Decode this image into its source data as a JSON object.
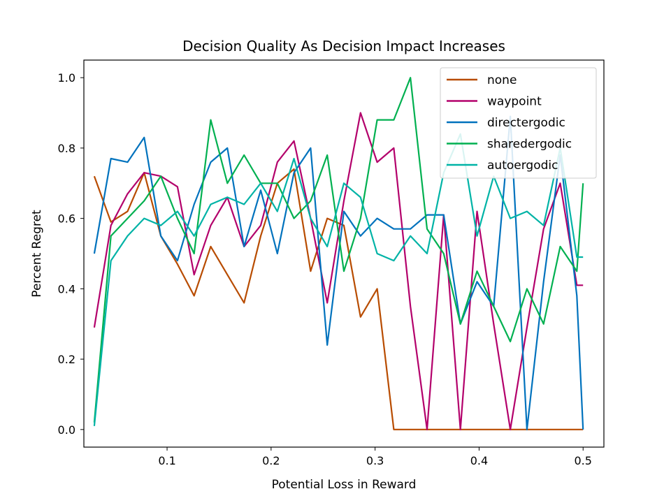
{
  "chart_data": {
    "type": "line",
    "title": "Decision Quality As Decision Impact Increases",
    "xlabel": "Potential Loss in Reward",
    "ylabel": "Percent Regret",
    "xlim": [
      0.02,
      0.52
    ],
    "ylim": [
      -0.05,
      1.05
    ],
    "xticks": [
      0.1,
      0.2,
      0.3,
      0.4,
      0.5
    ],
    "xtick_labels": [
      "0.1",
      "0.2",
      "0.3",
      "0.4",
      "0.5"
    ],
    "yticks": [
      0.0,
      0.2,
      0.4,
      0.6,
      0.8,
      1.0
    ],
    "ytick_labels": [
      "0.0",
      "0.2",
      "0.4",
      "0.6",
      "0.8",
      "1.0"
    ],
    "grid": false,
    "legend_position": "top-right",
    "x": [
      0.03,
      0.046,
      0.062,
      0.078,
      0.094,
      0.11,
      0.126,
      0.142,
      0.158,
      0.174,
      0.19,
      0.206,
      0.222,
      0.238,
      0.254,
      0.27,
      0.286,
      0.302,
      0.318,
      0.334,
      0.35,
      0.366,
      0.382,
      0.398,
      0.414,
      0.43,
      0.446,
      0.462,
      0.478,
      0.494,
      0.5
    ],
    "series": [
      {
        "name": "none",
        "color": "#b84c00",
        "values": [
          0.72,
          0.59,
          0.62,
          0.73,
          0.55,
          0.47,
          0.38,
          0.52,
          0.44,
          0.36,
          0.55,
          0.7,
          0.74,
          0.45,
          0.6,
          0.58,
          0.32,
          0.4,
          0.0,
          0.0,
          0.0,
          0.0,
          0.0,
          0.0,
          0.0,
          0.0,
          0.0,
          0.0,
          0.0,
          0.0,
          0.0
        ]
      },
      {
        "name": "waypoint",
        "color": "#b3006b",
        "values": [
          0.29,
          0.58,
          0.67,
          0.73,
          0.72,
          0.69,
          0.44,
          0.58,
          0.66,
          0.52,
          0.58,
          0.76,
          0.82,
          0.6,
          0.36,
          0.65,
          0.9,
          0.76,
          0.8,
          0.35,
          0.0,
          0.61,
          0.0,
          0.62,
          0.3,
          0.0,
          0.29,
          0.57,
          0.7,
          0.41,
          0.41
        ]
      },
      {
        "name": "directergodic",
        "color": "#0072bd",
        "values": [
          0.5,
          0.77,
          0.76,
          0.83,
          0.55,
          0.48,
          0.64,
          0.76,
          0.8,
          0.52,
          0.68,
          0.5,
          0.73,
          0.8,
          0.24,
          0.62,
          0.55,
          0.6,
          0.57,
          0.57,
          0.61,
          0.61,
          0.3,
          0.42,
          0.35,
          0.89,
          0.0,
          0.42,
          0.78,
          0.38,
          0.0
        ]
      },
      {
        "name": "sharedergodic",
        "color": "#00b050",
        "values": [
          0.02,
          0.55,
          0.6,
          0.65,
          0.72,
          0.6,
          0.5,
          0.88,
          0.7,
          0.78,
          0.7,
          0.7,
          0.6,
          0.65,
          0.78,
          0.45,
          0.6,
          0.88,
          0.88,
          1.0,
          0.57,
          0.5,
          0.3,
          0.45,
          0.35,
          0.25,
          0.4,
          0.3,
          0.52,
          0.45,
          0.7
        ]
      },
      {
        "name": "autoergodic",
        "color": "#00b3a6",
        "values": [
          0.01,
          0.48,
          0.55,
          0.6,
          0.58,
          0.62,
          0.55,
          0.64,
          0.66,
          0.64,
          0.7,
          0.62,
          0.77,
          0.6,
          0.52,
          0.7,
          0.66,
          0.5,
          0.48,
          0.55,
          0.5,
          0.73,
          0.84,
          0.55,
          0.72,
          0.6,
          0.62,
          0.58,
          0.8,
          0.49,
          0.49
        ]
      }
    ]
  }
}
